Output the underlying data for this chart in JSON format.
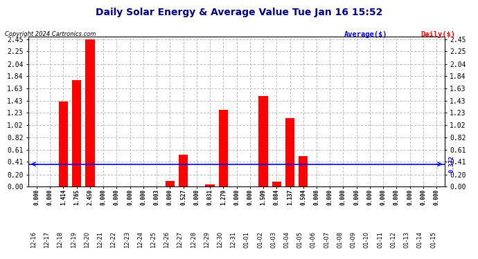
{
  "title": "Daily Solar Energy & Average Value Tue Jan 16 15:52",
  "copyright": "Copyright 2024 Cartronics.com",
  "categories": [
    "12-16",
    "12-17",
    "12-18",
    "12-19",
    "12-20",
    "12-21",
    "12-22",
    "12-23",
    "12-24",
    "12-25",
    "12-26",
    "12-27",
    "12-28",
    "12-29",
    "12-30",
    "12-31",
    "01-01",
    "01-02",
    "01-03",
    "01-04",
    "01-05",
    "01-06",
    "01-07",
    "01-08",
    "01-09",
    "01-10",
    "01-11",
    "01-12",
    "01-13",
    "01-14",
    "01-15"
  ],
  "values": [
    0.0,
    0.0,
    1.414,
    1.765,
    2.45,
    0.0,
    0.0,
    0.0,
    0.0,
    0.003,
    0.09,
    0.527,
    0.0,
    0.031,
    1.279,
    0.0,
    0.0,
    1.509,
    0.084,
    1.137,
    0.504,
    0.0,
    0.0,
    0.0,
    0.0,
    0.0,
    0.0,
    0.0,
    0.0,
    0.0,
    0.0
  ],
  "average_line": 0.372,
  "ylim": [
    0.0,
    2.45
  ],
  "yticks": [
    0.0,
    0.2,
    0.41,
    0.61,
    0.82,
    1.02,
    1.23,
    1.43,
    1.63,
    1.84,
    2.04,
    2.25,
    2.45
  ],
  "bar_color": "#ff0000",
  "average_color": "#0000ff",
  "grid_color": "#c0c0c0",
  "bg_color": "#ffffff",
  "title_color": "#000080",
  "copyright_color": "#000000",
  "legend_average_color": "#0000ff",
  "legend_daily_color": "#ff0000"
}
